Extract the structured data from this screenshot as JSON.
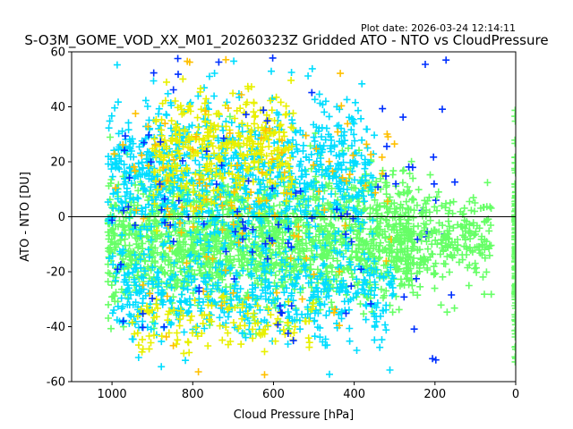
{
  "plot_date": "Plot date: 2026-03-24 12:14:11",
  "chart_data": {
    "type": "scatter",
    "title": "S-O3M_GOME_VOD_XX_M01_20260323Z Gridded ATO - NTO vs CloudPressure",
    "xlabel": "Cloud Pressure [hPa]",
    "ylabel": "ATO - NTO [DU]",
    "xlim": [
      1100,
      0
    ],
    "ylim": [
      -60,
      60
    ],
    "x_ticks": [
      1000,
      800,
      600,
      400,
      200,
      0
    ],
    "y_ticks": [
      -60,
      -40,
      -20,
      0,
      20,
      40,
      60
    ],
    "marker": "+",
    "reference_line_y": 0,
    "colors": {
      "dominant": "#66ff66",
      "secondary": "#00ddff",
      "accent_yellow": "#e8f000",
      "accent_orange": "#ffc000",
      "accent_blue": "#0030ff"
    },
    "point_groups": [
      {
        "name": "core",
        "x_range": [
          1010,
          250
        ],
        "y_center": -8,
        "y_spread": 12,
        "count": 1800,
        "color": "#66ff66"
      },
      {
        "name": "upper-cloud",
        "x_range": [
          1010,
          350
        ],
        "y_center": 15,
        "y_spread": 14,
        "count": 900,
        "color": "#00ddff"
      },
      {
        "name": "lower-cloud",
        "x_range": [
          1000,
          300
        ],
        "y_center": -28,
        "y_spread": 9,
        "count": 500,
        "color": "#00ddff"
      },
      {
        "name": "upper-yellow",
        "x_range": [
          900,
          550
        ],
        "y_center": 25,
        "y_spread": 10,
        "count": 350,
        "color": "#e8f000"
      },
      {
        "name": "lower-yellow",
        "x_range": [
          950,
          500
        ],
        "y_center": -38,
        "y_spread": 5,
        "count": 120,
        "color": "#e8f000"
      },
      {
        "name": "orange",
        "x_range": [
          1000,
          300
        ],
        "y_center": 10,
        "y_spread": 25,
        "count": 120,
        "color": "#ffc000"
      },
      {
        "name": "blue",
        "x_range": [
          1000,
          150
        ],
        "y_center": 5,
        "y_spread": 28,
        "count": 110,
        "color": "#0030ff"
      },
      {
        "name": "tail",
        "x_range": [
          300,
          60
        ],
        "y_center": -8,
        "y_spread": 9,
        "count": 260,
        "color": "#66ff66"
      },
      {
        "name": "zero-pressure",
        "x_range": [
          2,
          0
        ],
        "y_center": -10,
        "y_spread": 18,
        "count": 140,
        "color": "#66ff66"
      }
    ]
  }
}
